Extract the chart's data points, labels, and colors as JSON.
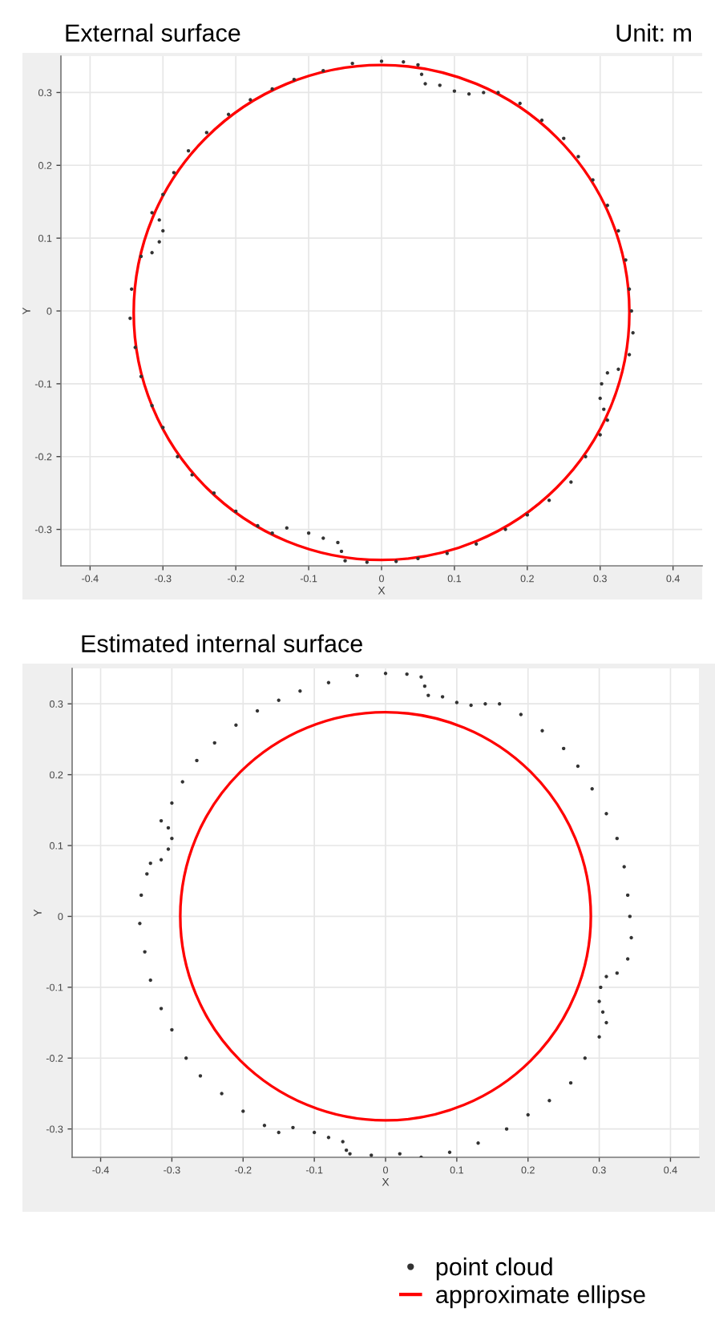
{
  "chart_data": [
    {
      "type": "scatter",
      "title": "External surface",
      "xlabel": "X",
      "ylabel": "Y",
      "annotations": [
        "Unit: m"
      ],
      "xlim": [
        -0.44,
        0.44
      ],
      "ylim": [
        -0.35,
        0.35
      ],
      "xticks": [
        -0.4,
        -0.3,
        -0.2,
        -0.1,
        0,
        0.1,
        0.2,
        0.3,
        0.4
      ],
      "yticks": [
        -0.3,
        -0.2,
        -0.1,
        0,
        0.1,
        0.2,
        0.3
      ],
      "grid": true,
      "legend": false,
      "series": [
        {
          "color": "#333333",
          "marker": "circle",
          "x": [
            0.0,
            0.03,
            0.05,
            0.055,
            0.06,
            0.08,
            0.1,
            0.12,
            0.14,
            0.16,
            0.19,
            0.22,
            0.25,
            0.27,
            0.29,
            0.31,
            0.325,
            0.335,
            0.34,
            0.343,
            0.345,
            0.34,
            0.325,
            0.31,
            0.302,
            0.3,
            0.305,
            0.31,
            0.3,
            0.28,
            0.26,
            0.23,
            0.2,
            0.17,
            0.13,
            0.09,
            0.05,
            0.02,
            -0.02,
            -0.05,
            -0.055,
            -0.06,
            -0.08,
            -0.1,
            -0.13,
            -0.15,
            -0.17,
            -0.2,
            -0.23,
            -0.26,
            -0.28,
            -0.3,
            -0.315,
            -0.33,
            -0.338,
            -0.345,
            -0.343,
            -0.33,
            -0.315,
            -0.305,
            -0.3,
            -0.305,
            -0.315,
            -0.3,
            -0.285,
            -0.265,
            -0.24,
            -0.21,
            -0.18,
            -0.15,
            -0.12,
            -0.08,
            -0.04
          ],
          "values": [
            0.343,
            0.342,
            0.338,
            0.325,
            0.312,
            0.31,
            0.302,
            0.298,
            0.3,
            0.3,
            0.285,
            0.262,
            0.237,
            0.212,
            0.18,
            0.145,
            0.11,
            0.07,
            0.03,
            0.0,
            -0.03,
            -0.06,
            -0.08,
            -0.085,
            -0.1,
            -0.12,
            -0.135,
            -0.15,
            -0.17,
            -0.2,
            -0.235,
            -0.26,
            -0.28,
            -0.3,
            -0.32,
            -0.333,
            -0.34,
            -0.344,
            -0.345,
            -0.343,
            -0.33,
            -0.318,
            -0.312,
            -0.305,
            -0.298,
            -0.305,
            -0.295,
            -0.275,
            -0.25,
            -0.225,
            -0.2,
            -0.16,
            -0.13,
            -0.09,
            -0.05,
            -0.01,
            0.03,
            0.075,
            0.08,
            0.095,
            0.11,
            0.125,
            0.135,
            0.16,
            0.19,
            0.22,
            0.245,
            0.27,
            0.29,
            0.305,
            0.318,
            0.33,
            0.34
          ]
        }
      ]
    },
    {
      "type": "scatter",
      "title": "Estimated internal surface",
      "xlabel": "X",
      "ylabel": "Y",
      "annotations": [
        "approximate ellipse"
      ],
      "xlim": [
        -0.44,
        0.44
      ],
      "ylim": [
        -0.34,
        0.35
      ],
      "xticks": [
        -0.4,
        -0.3,
        -0.2,
        -0.1,
        0,
        0.1,
        0.2,
        0.3,
        0.4
      ],
      "yticks": [
        -0.3,
        -0.2,
        -0.1,
        0,
        0.1,
        0.2,
        0.3
      ],
      "grid": true,
      "legend": "bottom",
      "series": [
        {
          "name": "point cloud",
          "color": "#333333",
          "marker": "circle",
          "x": [
            0.0,
            0.03,
            0.05,
            0.055,
            0.06,
            0.08,
            0.1,
            0.12,
            0.14,
            0.16,
            0.19,
            0.22,
            0.25,
            0.27,
            0.29,
            0.31,
            0.325,
            0.335,
            0.34,
            0.343,
            0.345,
            0.34,
            0.325,
            0.31,
            0.302,
            0.3,
            0.305,
            0.31,
            0.3,
            0.28,
            0.26,
            0.23,
            0.2,
            0.17,
            0.13,
            0.09,
            0.05,
            0.02,
            -0.02,
            -0.05,
            -0.055,
            -0.06,
            -0.08,
            -0.1,
            -0.13,
            -0.15,
            -0.17,
            -0.2,
            -0.23,
            -0.26,
            -0.28,
            -0.3,
            -0.315,
            -0.33,
            -0.338,
            -0.345,
            -0.343,
            -0.335,
            -0.33,
            -0.315,
            -0.305,
            -0.3,
            -0.305,
            -0.315,
            -0.3,
            -0.285,
            -0.265,
            -0.24,
            -0.21,
            -0.18,
            -0.15,
            -0.12,
            -0.08,
            -0.04
          ],
          "values": [
            0.343,
            0.342,
            0.338,
            0.325,
            0.312,
            0.31,
            0.302,
            0.298,
            0.3,
            0.3,
            0.285,
            0.262,
            0.237,
            0.212,
            0.18,
            0.145,
            0.11,
            0.07,
            0.03,
            0.0,
            -0.03,
            -0.06,
            -0.08,
            -0.085,
            -0.1,
            -0.12,
            -0.135,
            -0.15,
            -0.17,
            -0.2,
            -0.235,
            -0.26,
            -0.28,
            -0.3,
            -0.32,
            -0.333,
            -0.34,
            -0.335,
            -0.337,
            -0.335,
            -0.33,
            -0.318,
            -0.312,
            -0.305,
            -0.298,
            -0.305,
            -0.295,
            -0.275,
            -0.25,
            -0.225,
            -0.2,
            -0.16,
            -0.13,
            -0.09,
            -0.05,
            -0.01,
            0.03,
            0.06,
            0.075,
            0.08,
            0.095,
            0.11,
            0.125,
            0.135,
            0.16,
            0.19,
            0.22,
            0.245,
            0.27,
            0.29,
            0.305,
            0.318,
            0.33,
            0.34
          ]
        }
      ]
    }
  ]
}
